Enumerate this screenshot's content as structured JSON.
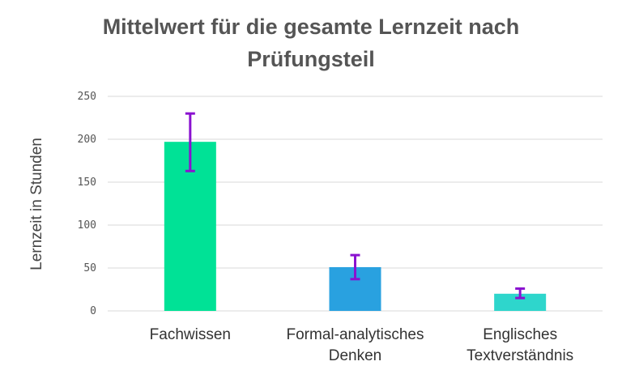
{
  "chart_data": {
    "type": "bar",
    "title_lines": [
      "Mittelwert für die gesamte Lernzeit nach",
      "Prüfungsteil"
    ],
    "ylabel": "Lernzeit in Stunden",
    "xlabel": "",
    "ylim": [
      0,
      250
    ],
    "yticks": [
      0,
      50,
      100,
      150,
      200,
      250
    ],
    "grid": true,
    "categories": [
      {
        "label_lines": [
          "Fachwissen"
        ],
        "value": 197,
        "error_low": 163,
        "error_high": 230,
        "color": "#00e296"
      },
      {
        "label_lines": [
          "Formal-analytisches",
          "Denken"
        ],
        "value": 51,
        "error_low": 37,
        "error_high": 65,
        "color": "#29a1e0"
      },
      {
        "label_lines": [
          "Englisches",
          "Textverständnis"
        ],
        "value": 20,
        "error_low": 15,
        "error_high": 26,
        "color": "#2ed6cc"
      }
    ],
    "error_bar_color": "#8a12d0"
  }
}
